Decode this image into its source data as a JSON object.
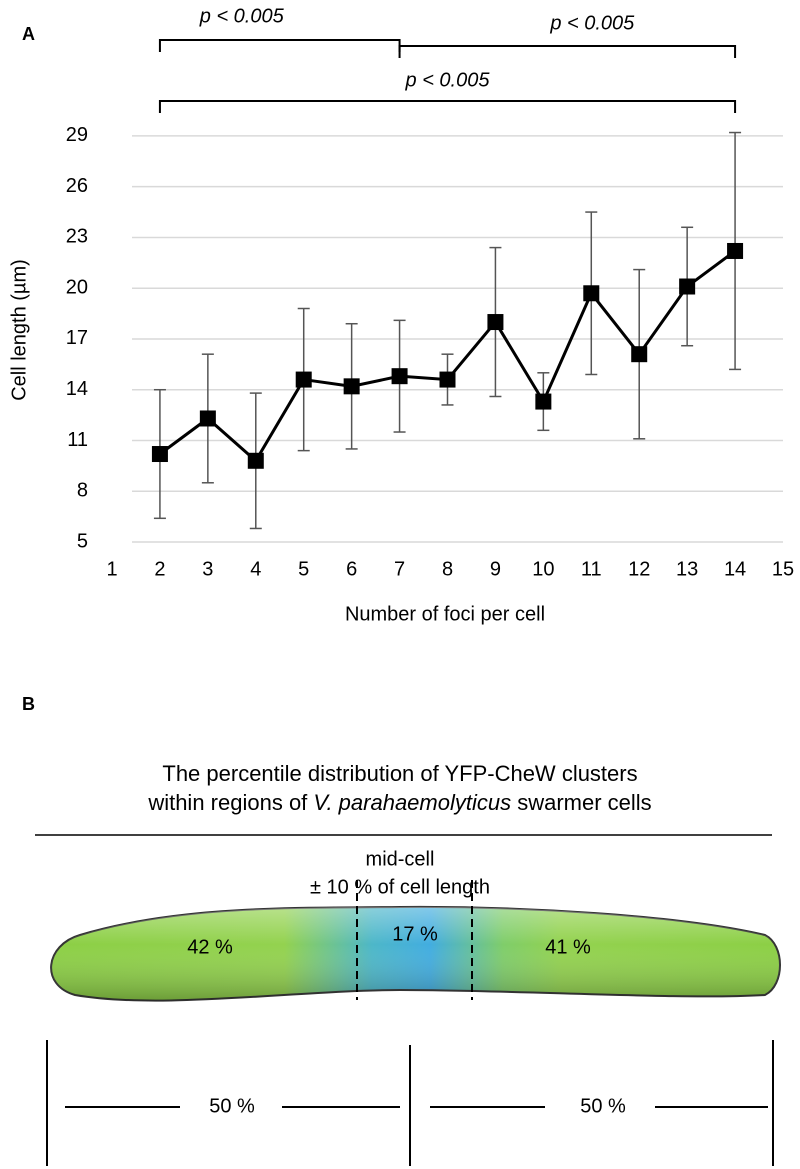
{
  "chart_data": {
    "type": "line",
    "panel_label": "A",
    "xlabel": "Number of foci per cell",
    "ylabel": "Cell length (µm)",
    "x": [
      2,
      3,
      4,
      5,
      6,
      7,
      8,
      9,
      10,
      11,
      12,
      13,
      14
    ],
    "series": [
      {
        "color": "#000000",
        "values": [
          10.2,
          12.3,
          9.8,
          14.6,
          14.2,
          14.8,
          14.6,
          18.0,
          13.3,
          19.7,
          16.1,
          20.1,
          22.2
        ],
        "errors": [
          3.8,
          3.8,
          4.0,
          4.2,
          3.7,
          3.3,
          1.5,
          4.4,
          1.7,
          4.8,
          5.0,
          3.5,
          7.0
        ]
      }
    ],
    "error_color": "#555555",
    "xlim": [
      1,
      15
    ],
    "xticks": [
      1,
      2,
      3,
      4,
      5,
      6,
      7,
      8,
      9,
      10,
      11,
      12,
      13,
      14,
      15
    ],
    "ylim": [
      5,
      30
    ],
    "yticks": [
      5,
      8,
      11,
      14,
      17,
      20,
      23,
      26,
      29
    ],
    "grid": true,
    "brackets": [
      {
        "label": "p < 0.005",
        "from": 2,
        "to": 7
      },
      {
        "label": "p < 0.005",
        "from": 7,
        "to": 14
      },
      {
        "label": "p < 0.005",
        "from": 2,
        "to": 14
      }
    ]
  },
  "diagram": {
    "panel_label": "B",
    "title_line1": "The percentile distribution of YFP-CheW clusters",
    "title_line2_pre": "within regions of ",
    "title_line2_italic": "V. parahaemolyticus",
    "title_line2_post": " swarmer cells",
    "midcell_line1": "mid-cell",
    "midcell_line2": "± 10 % of cell length",
    "left_region": "42 %",
    "mid_region": "17 %",
    "right_region": "41 %",
    "left_half": "50 %",
    "right_half": "50 %"
  }
}
